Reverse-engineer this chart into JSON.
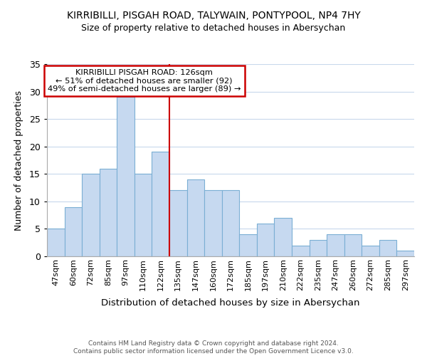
{
  "title": "KIRRIBILLI, PISGAH ROAD, TALYWAIN, PONTYPOOL, NP4 7HY",
  "subtitle": "Size of property relative to detached houses in Abersychan",
  "xlabel": "Distribution of detached houses by size in Abersychan",
  "ylabel": "Number of detached properties",
  "footer_line1": "Contains HM Land Registry data © Crown copyright and database right 2024.",
  "footer_line2": "Contains public sector information licensed under the Open Government Licence v3.0.",
  "bar_labels": [
    "47sqm",
    "60sqm",
    "72sqm",
    "85sqm",
    "97sqm",
    "110sqm",
    "122sqm",
    "135sqm",
    "147sqm",
    "160sqm",
    "172sqm",
    "185sqm",
    "197sqm",
    "210sqm",
    "222sqm",
    "235sqm",
    "247sqm",
    "260sqm",
    "272sqm",
    "285sqm",
    "297sqm"
  ],
  "bar_values": [
    5,
    9,
    15,
    16,
    29,
    15,
    19,
    12,
    14,
    12,
    12,
    4,
    6,
    7,
    2,
    3,
    4,
    4,
    2,
    3,
    1
  ],
  "bar_color": "#c6d9f0",
  "bar_edge_color": "#7bafd4",
  "vline_x": 6.5,
  "vline_color": "#cc0000",
  "ylim": [
    0,
    35
  ],
  "yticks": [
    0,
    5,
    10,
    15,
    20,
    25,
    30,
    35
  ],
  "annotation_title": "KIRRIBILLI PISGAH ROAD: 126sqm",
  "annotation_line2": "← 51% of detached houses are smaller (92)",
  "annotation_line3": "49% of semi-detached houses are larger (89) →",
  "annotation_box_color": "#ffffff",
  "annotation_box_edge": "#cc0000",
  "background_color": "#ffffff",
  "grid_color": "#c8d8ec"
}
